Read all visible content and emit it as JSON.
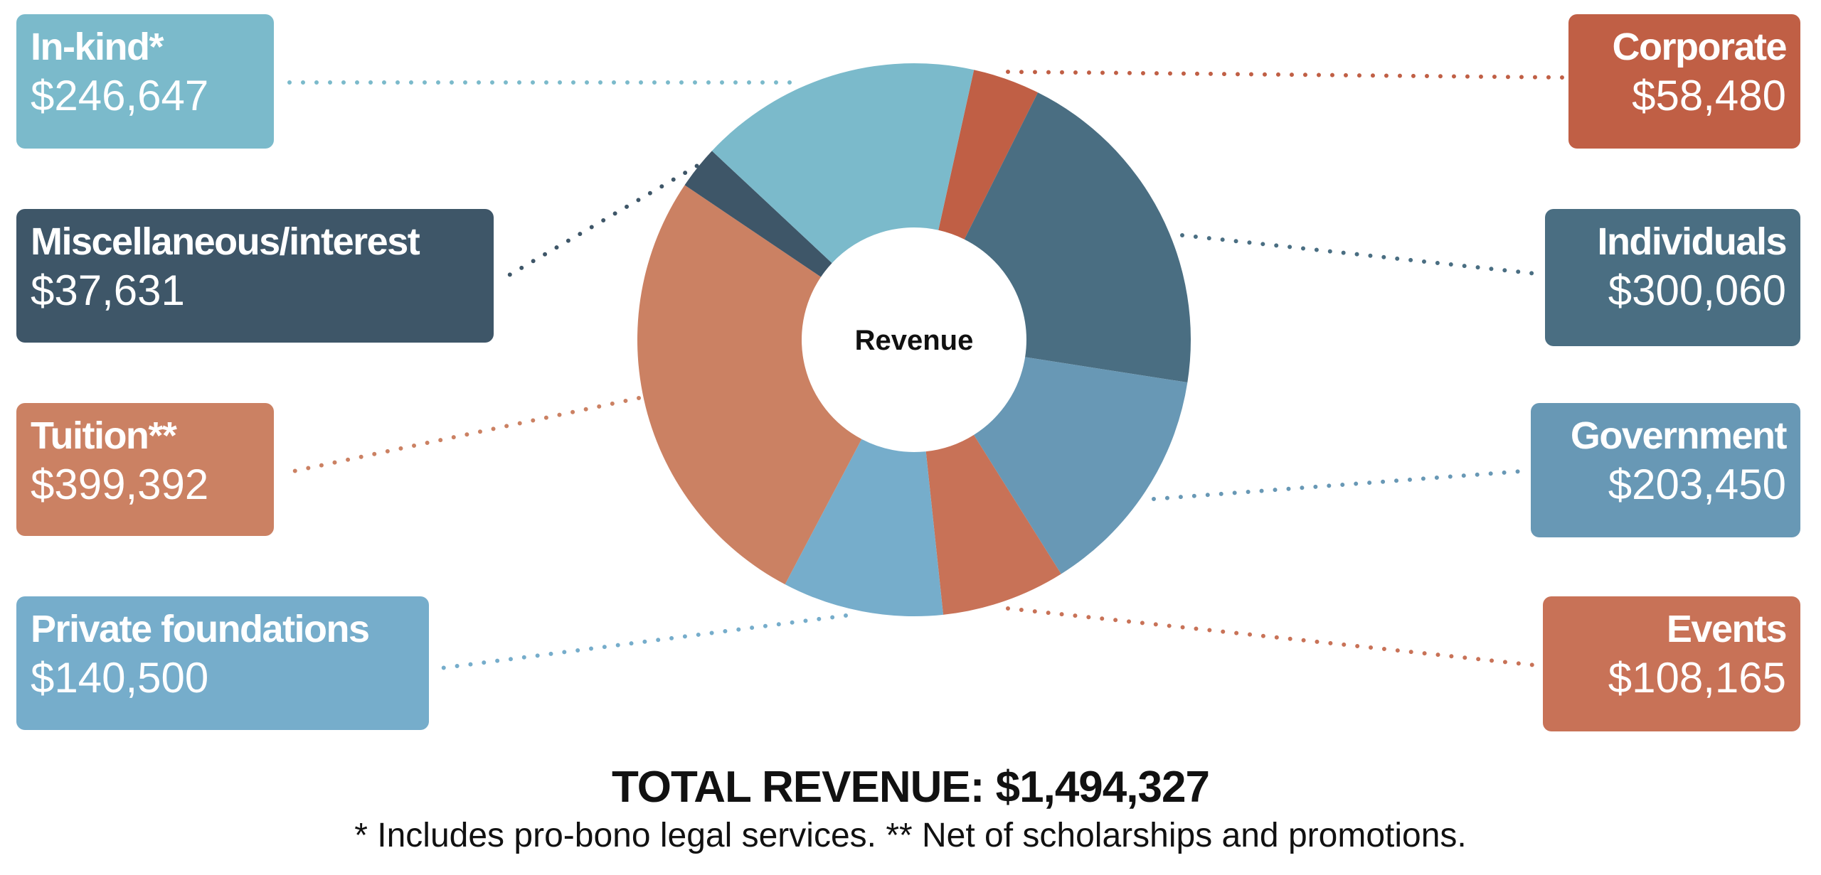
{
  "chart_data": {
    "type": "pie",
    "donut": true,
    "center_label": "Revenue",
    "start_angle_deg": 12.5,
    "slices": [
      {
        "label": "Corporate",
        "value": 58480,
        "display": "$58,480",
        "color": "#c05f45"
      },
      {
        "label": "Individuals",
        "value": 300060,
        "display": "$300,060",
        "color": "#4a6e82"
      },
      {
        "label": "Government",
        "value": 203450,
        "display": "$203,450",
        "color": "#6898b5"
      },
      {
        "label": "Events",
        "value": 108165,
        "display": "$108,165",
        "color": "#c87257"
      },
      {
        "label": "Private foundations",
        "value": 140500,
        "display": "$140,500",
        "color": "#76adcb"
      },
      {
        "label": "Tuition**",
        "value": 399392,
        "display": "$399,392",
        "color": "#cb8163"
      },
      {
        "label": "Miscellaneous/interest",
        "value": 37631,
        "display": "$37,631",
        "color": "#3e5668"
      },
      {
        "label": "In-kind*",
        "value": 246647,
        "display": "$246,647",
        "color": "#7bbacb"
      }
    ],
    "total_label": "TOTAL REVENUE: $1,494,327",
    "footnote": "* Includes pro-bono legal services. ** Net of scholarships and promotions."
  }
}
